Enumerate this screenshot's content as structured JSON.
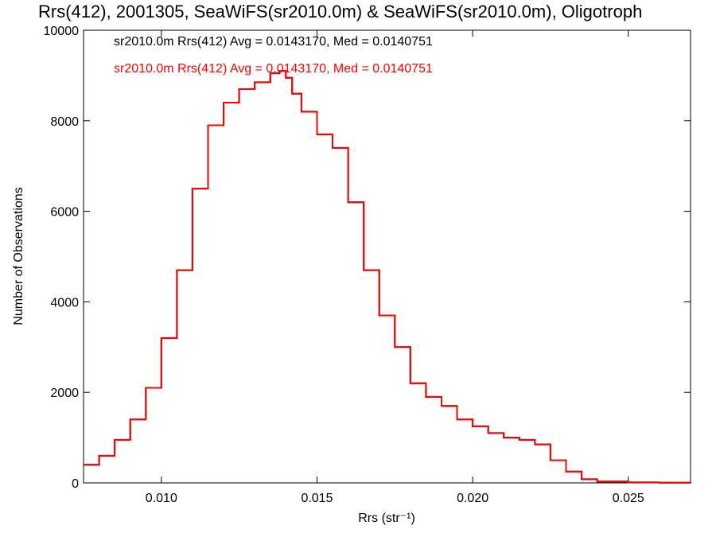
{
  "chart_data": {
    "type": "line",
    "title": "Rrs(412), 2001305, SeaWiFS(sr2010.0m) & SeaWiFS(sr2010.0m), Oligotroph",
    "xlabel": "Rrs (str⁻¹)",
    "ylabel": "Number of Observations",
    "xlim": [
      0.0075,
      0.027
    ],
    "ylim": [
      0,
      10000
    ],
    "x_ticks": [
      0.01,
      0.015,
      0.02,
      0.025
    ],
    "x_tick_labels": [
      "0.010",
      "0.015",
      "0.020",
      "0.025"
    ],
    "y_ticks": [
      0,
      2000,
      4000,
      6000,
      8000,
      10000
    ],
    "y_tick_labels": [
      "0",
      "2000",
      "4000",
      "6000",
      "8000",
      "10000"
    ],
    "grid": false,
    "legend_position": "top-left",
    "annotations": [
      {
        "text": "sr2010.0m Rrs(412) Avg = 0.0143170, Med = 0.0140751",
        "color": "#000000"
      },
      {
        "text": "sr2010.0m Rrs(412) Avg = 0.0143170, Med = 0.0140751",
        "color": "#ff0000"
      }
    ],
    "series": [
      {
        "color": "#000000",
        "x": [
          0.0075,
          0.008,
          0.0085,
          0.009,
          0.0095,
          0.01,
          0.0105,
          0.011,
          0.0115,
          0.012,
          0.0125,
          0.013,
          0.0135,
          0.0138,
          0.014,
          0.0142,
          0.0145,
          0.015,
          0.0155,
          0.016,
          0.0165,
          0.017,
          0.0175,
          0.018,
          0.0185,
          0.019,
          0.0195,
          0.02,
          0.0205,
          0.021,
          0.0215,
          0.022,
          0.0225,
          0.023,
          0.0235,
          0.024,
          0.025,
          0.026,
          0.027
        ],
        "y": [
          400,
          600,
          950,
          1400,
          2100,
          3200,
          4700,
          6500,
          7900,
          8400,
          8700,
          8850,
          9050,
          9100,
          8950,
          8600,
          8200,
          7700,
          7400,
          6200,
          4700,
          3700,
          3000,
          2200,
          1900,
          1700,
          1400,
          1250,
          1100,
          1000,
          950,
          850,
          500,
          250,
          80,
          30,
          10,
          5,
          0
        ]
      },
      {
        "color": "#ff0000",
        "x": [
          0.0075,
          0.008,
          0.0085,
          0.009,
          0.0095,
          0.01,
          0.0105,
          0.011,
          0.0115,
          0.012,
          0.0125,
          0.013,
          0.0135,
          0.0138,
          0.014,
          0.0142,
          0.0145,
          0.015,
          0.0155,
          0.016,
          0.0165,
          0.017,
          0.0175,
          0.018,
          0.0185,
          0.019,
          0.0195,
          0.02,
          0.0205,
          0.021,
          0.0215,
          0.022,
          0.0225,
          0.023,
          0.0235,
          0.024,
          0.025,
          0.026,
          0.027
        ],
        "y": [
          400,
          600,
          950,
          1400,
          2100,
          3200,
          4700,
          6500,
          7900,
          8400,
          8700,
          8850,
          9050,
          9100,
          8950,
          8600,
          8200,
          7700,
          7400,
          6200,
          4700,
          3700,
          3000,
          2200,
          1900,
          1700,
          1400,
          1250,
          1100,
          1000,
          950,
          850,
          500,
          250,
          80,
          30,
          10,
          5,
          0
        ]
      }
    ]
  }
}
